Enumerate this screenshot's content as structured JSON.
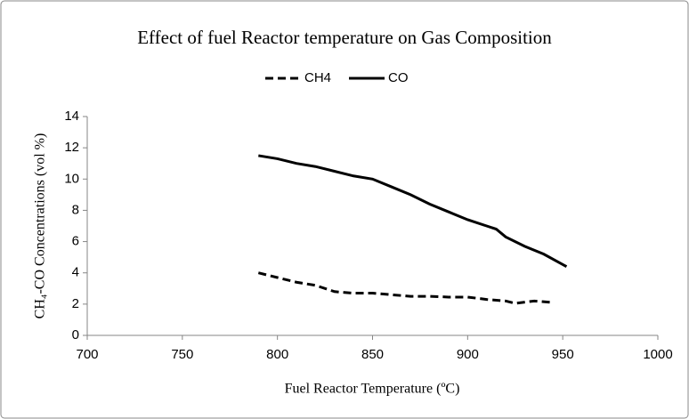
{
  "chart_data": {
    "type": "line",
    "title": "Effect of fuel Reactor temperature on Gas Composition",
    "xlabel": "Fuel Reactor Temperature (ºC)",
    "ylabel": "CH₄-CO Concentrations (vol %)",
    "xlim": [
      700,
      1000
    ],
    "xticks": [
      700,
      750,
      800,
      850,
      900,
      950,
      1000
    ],
    "ylim": [
      0,
      14
    ],
    "yticks": [
      0,
      2,
      4,
      6,
      8,
      10,
      12,
      14
    ],
    "legend": "top",
    "series": [
      {
        "name": "CH4",
        "color": "#000000",
        "linestyle": "dashed",
        "x": [
          790,
          800,
          810,
          820,
          830,
          840,
          850,
          860,
          870,
          880,
          890,
          900,
          910,
          920,
          925,
          935,
          945
        ],
        "values": [
          4.0,
          3.7,
          3.4,
          3.2,
          2.8,
          2.7,
          2.7,
          2.6,
          2.5,
          2.5,
          2.45,
          2.45,
          2.3,
          2.2,
          2.05,
          2.2,
          2.1
        ]
      },
      {
        "name": "CO",
        "color": "#000000",
        "linestyle": "solid",
        "x": [
          790,
          800,
          810,
          820,
          830,
          840,
          850,
          860,
          870,
          880,
          890,
          900,
          910,
          915,
          920,
          930,
          940,
          952
        ],
        "values": [
          11.5,
          11.3,
          11.0,
          10.8,
          10.5,
          10.2,
          10.0,
          9.5,
          9.0,
          8.4,
          7.9,
          7.4,
          7.0,
          6.8,
          6.3,
          5.7,
          5.2,
          4.4
        ]
      }
    ]
  }
}
